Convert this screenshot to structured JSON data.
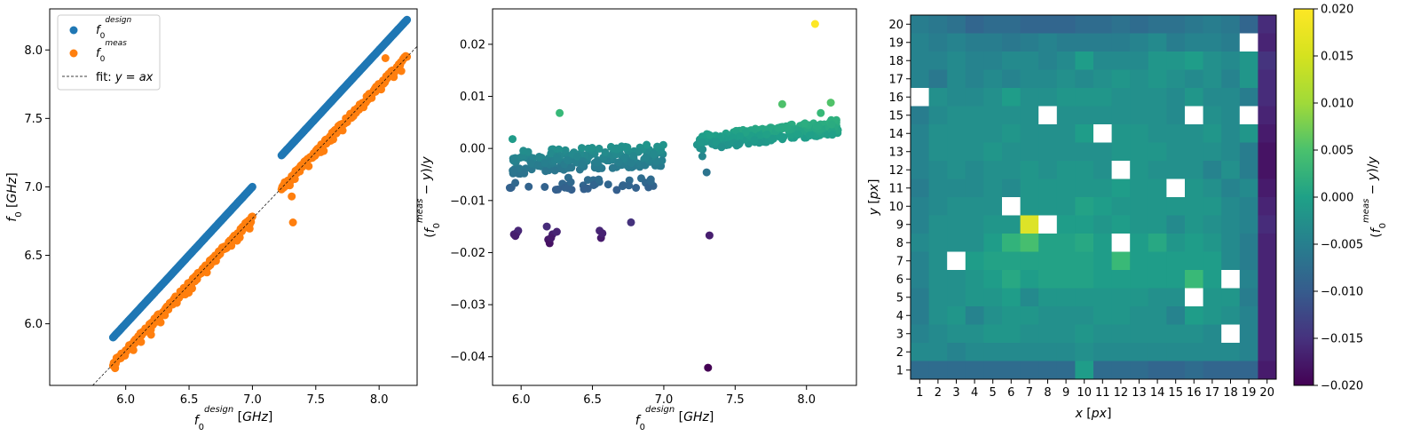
{
  "chart_data": [
    {
      "type": "scatter",
      "xlabel": "f_0^{design} [GHz]",
      "ylabel": "f_0 [GHz]",
      "xlim": [
        5.4,
        8.3
      ],
      "ylim": [
        5.55,
        8.3
      ],
      "xticks": [
        6.0,
        6.5,
        7.0,
        7.5,
        8.0
      ],
      "yticks": [
        6.0,
        6.5,
        7.0,
        7.5,
        8.0
      ],
      "xtick_labels": [
        "6.0",
        "6.5",
        "7.0",
        "7.5",
        "8.0"
      ],
      "ytick_labels": [
        "6.0",
        "6.5",
        "7.0",
        "7.5",
        "8.0"
      ],
      "legend_position": "top-left",
      "legend": [
        {
          "label": "f_0^{design}",
          "color": "#1f77b4",
          "kind": "marker"
        },
        {
          "label": "f_0^{meas}",
          "color": "#ff7f0e",
          "kind": "marker"
        },
        {
          "label": "fit: y = ax",
          "color": "#000000",
          "kind": "dashed-line"
        }
      ],
      "series": [
        {
          "name": "f_0^{design}",
          "color": "#1f77b4",
          "segments": [
            [
              5.9,
              7.0
            ],
            [
              7.23,
              8.22
            ]
          ],
          "relation": "y = x",
          "points_per_segment": 200
        },
        {
          "name": "f_0^{meas}",
          "color": "#ff7f0e",
          "segments": [
            [
              5.9,
              7.0
            ],
            [
              7.23,
              8.22
            ]
          ],
          "relation": "y ≈ 0.97 x",
          "points_per_segment": 200,
          "outliers": [
            [
              7.32,
              6.74
            ],
            [
              7.31,
              6.93
            ],
            [
              8.05,
              7.94
            ],
            [
              6.98,
              6.73
            ],
            [
              6.2,
              5.92
            ],
            [
              7.25,
              7.02
            ]
          ]
        },
        {
          "name": "fit: y = ax",
          "color": "#000000",
          "a": 0.967,
          "style": "dashed"
        }
      ]
    },
    {
      "type": "scatter",
      "xlabel": "f_0^{design} [GHz]",
      "ylabel": "(f_0^{meas} − y)/y",
      "xlim": [
        5.8,
        8.35
      ],
      "ylim": [
        -0.0455,
        0.0268
      ],
      "xticks": [
        6.0,
        6.5,
        7.0,
        7.5,
        8.0
      ],
      "yticks": [
        -0.04,
        -0.03,
        -0.02,
        -0.01,
        0.0,
        0.01,
        0.02
      ],
      "xtick_labels": [
        "6.0",
        "6.5",
        "7.0",
        "7.5",
        "8.0"
      ],
      "ytick_labels": [
        "−0.04",
        "−0.03",
        "−0.02",
        "−0.01",
        "0.00",
        "0.01",
        "0.02"
      ],
      "colormap": "viridis",
      "clim": [
        -0.02,
        0.02
      ],
      "clusters": [
        {
          "x_range": [
            5.92,
            7.0
          ],
          "y_center": -0.002,
          "y_spread": 0.0022,
          "trend": 0.0015,
          "count": 190
        },
        {
          "x_range": [
            5.92,
            6.95
          ],
          "y_center": -0.0068,
          "y_spread": 0.0012,
          "trend": 0.0,
          "count": 38
        },
        {
          "x_range": [
            7.23,
            8.22
          ],
          "y_center": 0.0026,
          "y_spread": 0.0015,
          "trend": 0.003,
          "count": 210
        }
      ],
      "points": [
        [
          5.95,
          -0.0165
        ],
        [
          5.97,
          -0.0162
        ],
        [
          5.98,
          -0.0158
        ],
        [
          5.96,
          -0.0168
        ],
        [
          6.18,
          -0.015
        ],
        [
          6.19,
          -0.0175
        ],
        [
          6.2,
          -0.0182
        ],
        [
          6.22,
          -0.0165
        ],
        [
          6.25,
          -0.016
        ],
        [
          6.21,
          -0.0172
        ],
        [
          6.55,
          -0.0158
        ],
        [
          6.56,
          -0.0172
        ],
        [
          6.57,
          -0.0163
        ],
        [
          6.77,
          -0.0142
        ],
        [
          7.32,
          -0.0167
        ],
        [
          7.31,
          -0.0421
        ],
        [
          7.3,
          -0.0046
        ],
        [
          7.27,
          -0.0015
        ],
        [
          6.27,
          0.0068
        ],
        [
          5.94,
          0.0018
        ],
        [
          7.83,
          0.0085
        ],
        [
          8.1,
          0.0068
        ],
        [
          8.17,
          0.0088
        ],
        [
          8.06,
          0.0239
        ]
      ]
    },
    {
      "type": "heatmap",
      "xlabel": "x [px]",
      "ylabel": "y [px]",
      "x": [
        1,
        2,
        3,
        4,
        5,
        6,
        7,
        8,
        9,
        10,
        11,
        12,
        13,
        14,
        15,
        16,
        17,
        18,
        19,
        20
      ],
      "y": [
        1,
        2,
        3,
        4,
        5,
        6,
        7,
        8,
        9,
        10,
        11,
        12,
        13,
        14,
        15,
        16,
        17,
        18,
        19,
        20
      ],
      "x_tick_labels": [
        "1",
        "2",
        "3",
        "4",
        "5",
        "6",
        "7",
        "8",
        "9",
        "10",
        "11",
        "12",
        "13",
        "14",
        "15",
        "16",
        "17",
        "18",
        "19",
        "20"
      ],
      "y_tick_labels": [
        "1",
        "2",
        "3",
        "4",
        "5",
        "6",
        "7",
        "8",
        "9",
        "10",
        "11",
        "12",
        "13",
        "14",
        "15",
        "16",
        "17",
        "18",
        "19",
        "20"
      ],
      "colormap": "viridis",
      "clim": [
        -0.02,
        0.02
      ],
      "colorbar_label": "(f_0^{meas} − y)/y",
      "colorbar_ticks": [
        -0.02,
        -0.015,
        -0.01,
        -0.005,
        0.0,
        0.005,
        0.01,
        0.015,
        0.02
      ],
      "colorbar_tick_labels": [
        "−0.020",
        "−0.015",
        "−0.010",
        "−0.005",
        "0.000",
        "0.005",
        "0.010",
        "0.015",
        "0.020"
      ],
      "missing_note": "null = no data (white)",
      "values_rows_top_to_bottom": [
        [
          -0.003,
          -0.004,
          -0.005,
          -0.007,
          -0.006,
          -0.006,
          -0.007,
          -0.007,
          -0.007,
          -0.006,
          -0.006,
          -0.005,
          -0.006,
          -0.005,
          -0.005,
          -0.004,
          -0.003,
          -0.004,
          -0.007,
          -0.015
        ],
        [
          -0.002,
          -0.003,
          -0.002,
          -0.003,
          -0.003,
          -0.004,
          -0.003,
          -0.002,
          -0.003,
          -0.003,
          -0.003,
          -0.003,
          -0.002,
          -0.001,
          -0.003,
          -0.002,
          -0.002,
          -0.003,
          null,
          -0.016
        ],
        [
          -0.002,
          -0.002,
          -0.001,
          -0.002,
          -0.002,
          -0.001,
          -0.001,
          -0.002,
          -0.001,
          0.002,
          -0.001,
          -0.001,
          -0.001,
          0.001,
          0.001,
          0.002,
          0.0,
          -0.001,
          0.001,
          -0.014
        ],
        [
          -0.002,
          -0.004,
          -0.001,
          -0.002,
          -0.001,
          -0.002,
          -0.001,
          -0.001,
          0.0,
          -0.001,
          0.0,
          0.001,
          0.0,
          0.001,
          0.0,
          -0.001,
          0.0,
          -0.002,
          0.001,
          -0.015
        ],
        [
          null,
          0.0,
          -0.001,
          -0.001,
          0.0,
          0.002,
          0.0,
          0.0,
          0.001,
          0.001,
          0.001,
          0.0,
          0.0,
          0.0,
          -0.001,
          0.001,
          -0.001,
          -0.001,
          -0.003,
          -0.015
        ],
        [
          -0.003,
          -0.001,
          0.0,
          0.0,
          0.0,
          0.0,
          0.0,
          null,
          0.0,
          0.0,
          0.0,
          0.0,
          0.0,
          0.0,
          -0.001,
          null,
          0.0,
          -0.001,
          null,
          -0.016
        ],
        [
          -0.002,
          0.0,
          0.0,
          0.0,
          0.0,
          0.001,
          0.0,
          0.0,
          0.0,
          0.002,
          null,
          0.001,
          0.001,
          0.0,
          0.0,
          0.0,
          0.001,
          -0.001,
          0.001,
          -0.017
        ],
        [
          -0.002,
          0.0,
          0.0,
          0.0,
          0.001,
          0.0,
          0.0,
          0.0,
          0.0,
          0.0,
          0.0,
          0.001,
          0.001,
          0.001,
          0.0,
          0.0,
          0.0,
          -0.001,
          -0.003,
          -0.018
        ],
        [
          -0.002,
          -0.001,
          0.0,
          -0.001,
          0.0,
          0.0,
          0.001,
          0.0,
          0.001,
          0.001,
          0.0,
          null,
          0.001,
          0.0,
          0.0,
          0.0,
          -0.002,
          0.0,
          -0.003,
          -0.018
        ],
        [
          -0.003,
          -0.001,
          -0.001,
          -0.001,
          0.0,
          -0.001,
          0.001,
          0.001,
          0.001,
          0.001,
          0.001,
          0.002,
          0.001,
          0.001,
          null,
          0.001,
          0.0,
          -0.002,
          -0.001,
          -0.017
        ],
        [
          -0.002,
          -0.001,
          0.0,
          0.0,
          0.0,
          null,
          0.001,
          0.001,
          0.001,
          0.003,
          0.002,
          0.001,
          0.001,
          0.001,
          0.001,
          0.001,
          0.001,
          -0.001,
          -0.002,
          -0.016
        ],
        [
          -0.002,
          0.0,
          0.0,
          0.0,
          0.001,
          0.001,
          0.018,
          null,
          0.002,
          0.002,
          0.001,
          0.002,
          0.001,
          0.001,
          -0.001,
          0.001,
          0.0,
          -0.001,
          -0.002,
          -0.015
        ],
        [
          -0.001,
          0.0,
          0.0,
          0.0,
          0.002,
          0.006,
          0.008,
          0.003,
          0.003,
          0.004,
          0.002,
          null,
          0.002,
          0.004,
          0.001,
          0.002,
          0.001,
          -0.001,
          -0.003,
          -0.016
        ],
        [
          -0.002,
          0.0,
          null,
          0.002,
          0.003,
          0.003,
          0.003,
          0.003,
          0.003,
          0.003,
          0.002,
          0.007,
          0.002,
          0.002,
          0.002,
          0.002,
          0.002,
          -0.001,
          -0.003,
          -0.016
        ],
        [
          -0.002,
          0.0,
          0.0,
          0.001,
          0.002,
          0.004,
          0.002,
          0.003,
          0.003,
          0.003,
          0.002,
          0.002,
          0.002,
          0.002,
          0.002,
          0.007,
          0.002,
          null,
          -0.002,
          -0.016
        ],
        [
          -0.003,
          0.0,
          0.0,
          0.001,
          0.001,
          0.002,
          -0.001,
          0.001,
          0.001,
          0.001,
          0.001,
          0.001,
          0.001,
          0.0,
          0.0,
          null,
          0.001,
          0.001,
          -0.003,
          -0.016
        ],
        [
          -0.003,
          0.0,
          0.001,
          -0.002,
          0.0,
          0.001,
          0.001,
          0.0,
          0.0,
          0.0,
          0.001,
          0.001,
          0.0,
          0.0,
          -0.002,
          0.002,
          0.001,
          0.0,
          -0.002,
          -0.016
        ],
        [
          -0.002,
          -0.001,
          0.0,
          0.0,
          0.001,
          0.001,
          0.0,
          0.0,
          0.0,
          0.001,
          0.0,
          0.0,
          0.0,
          0.0,
          0.0,
          0.0,
          -0.001,
          null,
          -0.002,
          -0.016
        ],
        [
          -0.001,
          -0.001,
          -0.002,
          -0.001,
          -0.001,
          -0.001,
          -0.001,
          -0.001,
          -0.001,
          0.0,
          -0.001,
          -0.001,
          -0.001,
          -0.001,
          -0.001,
          -0.001,
          -0.001,
          -0.001,
          -0.002,
          -0.016
        ],
        [
          -0.006,
          -0.006,
          -0.006,
          -0.006,
          -0.006,
          -0.006,
          -0.006,
          -0.006,
          -0.006,
          0.002,
          -0.006,
          -0.006,
          -0.006,
          -0.007,
          -0.007,
          -0.006,
          -0.007,
          -0.007,
          -0.007,
          -0.017
        ]
      ]
    }
  ]
}
